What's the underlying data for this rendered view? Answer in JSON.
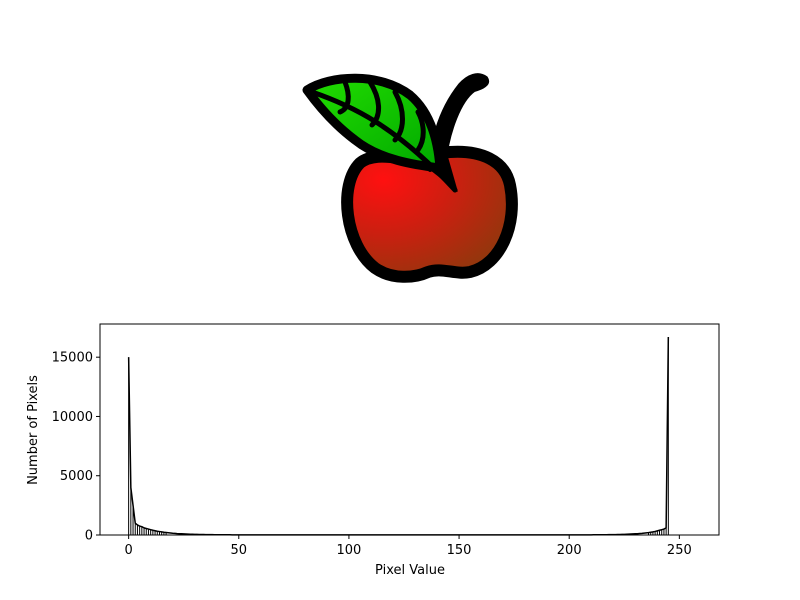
{
  "image_panel": {
    "subject": "apple-illustration",
    "colors": {
      "outline": "#000000",
      "fruit_highlight": "#ff1010",
      "fruit_mid": "#cc1f10",
      "fruit_shadow": "#8a3a0c",
      "leaf_light": "#22dd00",
      "leaf_dark": "#00a800",
      "stem": "#000000"
    }
  },
  "chart_data": {
    "type": "line",
    "title": "",
    "xlabel": "Pixel Value",
    "ylabel": "Number of Pixels",
    "xlim": [
      -13,
      268
    ],
    "ylim": [
      0,
      17800
    ],
    "xticks": [
      0,
      50,
      100,
      150,
      200,
      250
    ],
    "yticks": [
      0,
      5000,
      10000,
      15000
    ],
    "grid": false,
    "legend": "none",
    "line_color": "#000000",
    "series": [
      {
        "values": [
          15000,
          4000,
          2500,
          1000,
          850,
          750,
          700,
          600,
          550,
          500,
          450,
          400,
          360,
          320,
          290,
          260,
          230,
          210,
          190,
          170,
          150,
          135,
          120,
          110,
          100,
          90,
          82,
          75,
          68,
          62,
          56,
          50,
          46,
          42,
          38,
          35,
          32,
          29,
          27,
          25,
          23,
          21,
          20,
          19,
          18,
          17,
          16,
          15,
          14,
          13,
          12,
          12,
          11,
          11,
          10,
          10,
          10,
          9,
          9,
          9,
          9,
          8,
          8,
          8,
          8,
          8,
          8,
          7,
          7,
          7,
          7,
          7,
          7,
          7,
          7,
          6,
          6,
          6,
          6,
          6,
          6,
          6,
          6,
          6,
          6,
          6,
          6,
          6,
          6,
          6,
          6,
          6,
          6,
          6,
          6,
          6,
          6,
          6,
          6,
          6,
          6,
          6,
          6,
          6,
          6,
          6,
          6,
          6,
          6,
          6,
          6,
          6,
          6,
          6,
          6,
          6,
          6,
          6,
          6,
          6,
          6,
          6,
          6,
          6,
          6,
          6,
          6,
          6,
          6,
          6,
          6,
          6,
          6,
          6,
          6,
          6,
          6,
          6,
          6,
          6,
          6,
          6,
          6,
          6,
          6,
          6,
          6,
          6,
          6,
          6,
          6,
          6,
          6,
          6,
          6,
          6,
          6,
          6,
          6,
          6,
          6,
          6,
          6,
          6,
          6,
          6,
          6,
          6,
          6,
          6,
          6,
          6,
          6,
          6,
          6,
          6,
          6,
          6,
          6,
          6,
          7,
          7,
          7,
          7,
          7,
          7,
          7,
          7,
          7,
          7,
          8,
          8,
          8,
          8,
          8,
          8,
          8,
          9,
          9,
          9,
          9,
          10,
          10,
          10,
          11,
          11,
          12,
          12,
          13,
          14,
          15,
          16,
          17,
          18,
          19,
          21,
          23,
          25,
          27,
          30,
          33,
          36,
          40,
          45,
          50,
          56,
          63,
          70,
          80,
          90,
          100,
          110,
          125,
          140,
          160,
          180,
          200,
          230,
          260,
          300,
          350,
          400,
          450,
          500,
          600,
          16700
        ]
      }
    ]
  }
}
